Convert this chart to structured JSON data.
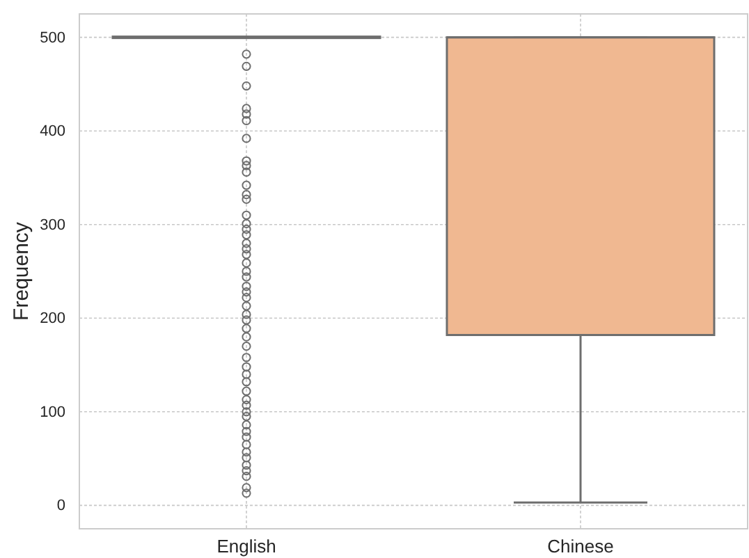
{
  "chart_data": {
    "type": "box",
    "ylabel": "Frequency",
    "categories": [
      "English",
      "Chinese"
    ],
    "ylim": [
      -25,
      525
    ],
    "yticks": [
      0,
      100,
      200,
      300,
      400,
      500
    ],
    "grid": true,
    "colors": [
      "#a6c6e8",
      "#f0b891"
    ],
    "boxes": [
      {
        "low": 500,
        "q1": 500,
        "median": 500,
        "q3": 500,
        "high": 500,
        "outliers": [
          482,
          469,
          448,
          424,
          418,
          411,
          392,
          368,
          363,
          356,
          342,
          332,
          327,
          310,
          301,
          295,
          289,
          280,
          274,
          268,
          259,
          250,
          244,
          234,
          228,
          222,
          213,
          204,
          198,
          189,
          180,
          170,
          158,
          148,
          140,
          132,
          122,
          113,
          107,
          100,
          95,
          86,
          79,
          73,
          65,
          57,
          51,
          43,
          37,
          31,
          19,
          13
        ]
      },
      {
        "low": 3,
        "q1": 182,
        "median": 500,
        "q3": 500,
        "high": 500
      }
    ]
  }
}
